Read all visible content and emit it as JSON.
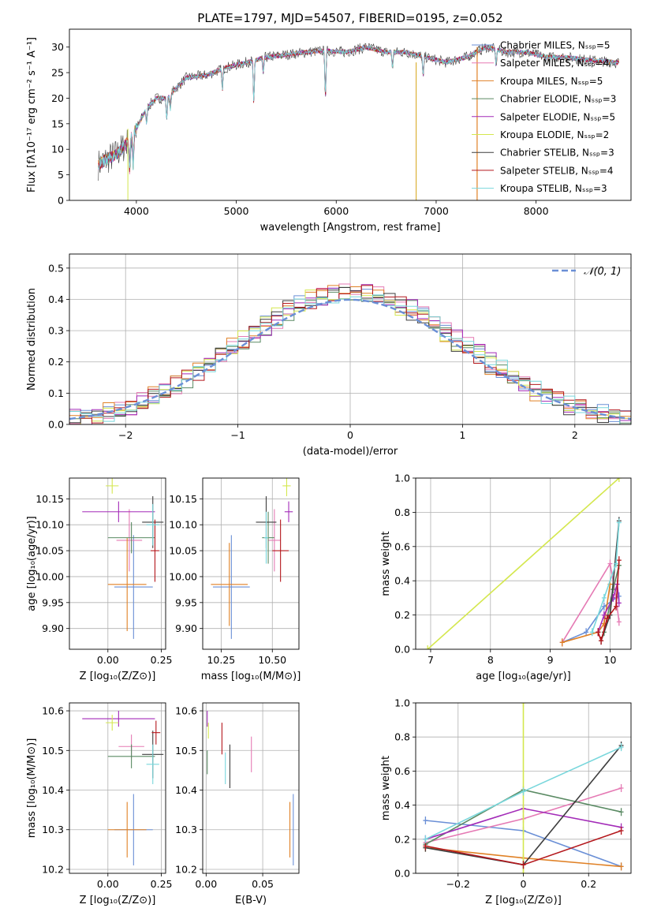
{
  "colors": [
    "#6a8fd6",
    "#e57ab4",
    "#e08126",
    "#5a8a63",
    "#a32bb8",
    "#d4e74e",
    "#3e3e3e",
    "#b4171c",
    "#79d7dc"
  ],
  "chart_data": [
    {
      "id": "spectrum",
      "type": "line",
      "title": "PLATE=1797, MJD=54507, FIBERID=0195, z=0.052",
      "xlabel": "wavelength [Angstrom, rest frame]",
      "ylabel": "Flux [fλ10⁻¹⁷ erg cm⁻² s⁻¹ A⁻¹]",
      "xlim": [
        3330,
        8950
      ],
      "ylim": [
        0,
        33.5
      ],
      "xticks": [
        4000,
        5000,
        6000,
        7000,
        8000
      ],
      "yticks": [
        0,
        5,
        10,
        15,
        20,
        25,
        30
      ],
      "grid": false,
      "legend_position": "upper-right",
      "legend": [
        {
          "label": "Chabrier MILES, Nₛₛₚ=5",
          "color": "#6a8fd6"
        },
        {
          "label": "Salpeter MILES, Nₛₛₚ=4",
          "color": "#e57ab4"
        },
        {
          "label": "Kroupa MILES, Nₛₛₚ=5",
          "color": "#e08126"
        },
        {
          "label": "Chabrier ELODIE, Nₛₛₚ=3",
          "color": "#5a8a63"
        },
        {
          "label": "Salpeter ELODIE, Nₛₛₚ=5",
          "color": "#a32bb8"
        },
        {
          "label": "Kroupa ELODIE, Nₛₛₚ=2",
          "color": "#d4e74e"
        },
        {
          "label": "Chabrier STELIB, Nₛₛₚ=3",
          "color": "#3e3e3e"
        },
        {
          "label": "Salpeter STELIB, Nₛₛₚ=4",
          "color": "#b4171c"
        },
        {
          "label": "Kroupa STELIB, Nₛₛₚ=3",
          "color": "#79d7dc"
        }
      ],
      "continuum": [
        [
          3620,
          7
        ],
        [
          3700,
          8
        ],
        [
          3800,
          9
        ],
        [
          3900,
          11
        ],
        [
          4000,
          14
        ],
        [
          4100,
          18
        ],
        [
          4200,
          20
        ],
        [
          4300,
          20
        ],
        [
          4400,
          22
        ],
        [
          4500,
          24
        ],
        [
          4700,
          24.5
        ],
        [
          4900,
          26
        ],
        [
          5100,
          27
        ],
        [
          5300,
          28
        ],
        [
          5500,
          28.5
        ],
        [
          5700,
          29
        ],
        [
          5900,
          29.3
        ],
        [
          6100,
          29
        ],
        [
          6300,
          30
        ],
        [
          6500,
          29
        ],
        [
          6700,
          29
        ],
        [
          6900,
          28
        ],
        [
          7100,
          27
        ],
        [
          7300,
          28
        ],
        [
          7500,
          30
        ],
        [
          7700,
          29
        ],
        [
          7900,
          29
        ],
        [
          8100,
          28
        ],
        [
          8300,
          28
        ],
        [
          8500,
          27.5
        ],
        [
          8800,
          27
        ]
      ]
    },
    {
      "id": "residuals",
      "type": "histogram",
      "xlabel": "(data-model)/error",
      "ylabel": "Normed distribution",
      "xlim": [
        -2.5,
        2.5
      ],
      "ylim": [
        0,
        0.545
      ],
      "xticks": [
        -2,
        -1,
        0,
        1,
        2
      ],
      "yticks": [
        0.0,
        0.1,
        0.2,
        0.3,
        0.4,
        0.5
      ],
      "grid": true,
      "legend": [
        {
          "label": "𝒩(0, 1)",
          "color": "#6a8fd6",
          "style": "dashed"
        }
      ],
      "legend_position": "upper-right",
      "bin_width": 0.1,
      "series_offsets": [
        0.0,
        0.03,
        -0.03,
        0.02,
        0.045,
        -0.02,
        -0.04,
        0.015,
        0.03
      ]
    },
    {
      "id": "age-vs-Z",
      "type": "errorbar",
      "xlabel": "Z [log₁₀(Z/Z⊙)]",
      "ylabel": "age  [log₁₀(age/yr)]",
      "xlim": [
        -0.18,
        0.27
      ],
      "ylim": [
        9.86,
        10.19
      ],
      "xticks": [
        0.0,
        0.25
      ],
      "yticks": [
        9.9,
        9.95,
        10.0,
        10.05,
        10.1,
        10.15
      ],
      "grid": true,
      "points": [
        {
          "x": 0.12,
          "y": 9.98,
          "xerr": 0.09,
          "yerr": 0.1,
          "series": 0
        },
        {
          "x": 0.1,
          "y": 10.07,
          "xerr": 0.06,
          "yerr": 0.06,
          "series": 1
        },
        {
          "x": 0.09,
          "y": 9.985,
          "xerr": 0.09,
          "yerr": 0.09,
          "series": 2
        },
        {
          "x": 0.11,
          "y": 10.075,
          "xerr": 0.11,
          "yerr": 0.03,
          "series": 3
        },
        {
          "x": 0.05,
          "y": 10.125,
          "xerr": 0.17,
          "yerr": 0.02,
          "series": 4
        },
        {
          "x": 0.02,
          "y": 10.175,
          "xerr": 0.03,
          "yerr": 0.015,
          "series": 5
        },
        {
          "x": 0.21,
          "y": 10.105,
          "xerr": 0.05,
          "yerr": 0.05,
          "series": 6
        },
        {
          "x": 0.22,
          "y": 10.05,
          "xerr": 0.02,
          "yerr": 0.06,
          "series": 7
        },
        {
          "x": 0.21,
          "y": 10.1,
          "xerr": 0.03,
          "yerr": 0.04,
          "series": 8
        }
      ]
    },
    {
      "id": "age-vs-mass",
      "type": "errorbar",
      "xlabel": "mass [log₁₀(M/M⊙)]",
      "ylabel": "",
      "xlim": [
        10.16,
        10.63
      ],
      "ylim": [
        9.86,
        10.19
      ],
      "xticks": [
        10.25,
        10.5
      ],
      "yticks": [
        9.9,
        9.95,
        10.0,
        10.05,
        10.1,
        10.15
      ],
      "grid": true,
      "points": [
        {
          "x": 10.3,
          "y": 9.98,
          "xerr": 0.09,
          "yerr": 0.1,
          "series": 0
        },
        {
          "x": 10.51,
          "y": 10.07,
          "xerr": 0.03,
          "yerr": 0.06,
          "series": 1
        },
        {
          "x": 10.29,
          "y": 9.985,
          "xerr": 0.09,
          "yerr": 0.08,
          "series": 2
        },
        {
          "x": 10.48,
          "y": 10.075,
          "xerr": 0.03,
          "yerr": 0.05,
          "series": 3
        },
        {
          "x": 10.58,
          "y": 10.125,
          "xerr": 0.02,
          "yerr": 0.02,
          "series": 4
        },
        {
          "x": 10.57,
          "y": 10.175,
          "xerr": 0.02,
          "yerr": 0.02,
          "series": 5
        },
        {
          "x": 10.47,
          "y": 10.105,
          "xerr": 0.05,
          "yerr": 0.05,
          "series": 6
        },
        {
          "x": 10.54,
          "y": 10.05,
          "xerr": 0.04,
          "yerr": 0.06,
          "series": 7
        },
        {
          "x": 10.47,
          "y": 10.075,
          "xerr": 0.01,
          "yerr": 0.05,
          "series": 8
        }
      ]
    },
    {
      "id": "weight-vs-age",
      "type": "line",
      "xlabel": "age  [log₁₀(age/yr)]",
      "ylabel": "mass weight",
      "xlim": [
        6.75,
        10.35
      ],
      "ylim": [
        0,
        1.0
      ],
      "xticks": [
        7,
        8,
        9,
        10
      ],
      "yticks": [
        0.0,
        0.2,
        0.4,
        0.6,
        0.8,
        1.0
      ],
      "grid": true,
      "series": [
        {
          "series": 0,
          "points": [
            [
              9.2,
              0.04
            ],
            [
              9.6,
              0.1
            ],
            [
              9.9,
              0.25
            ],
            [
              10.1,
              0.3
            ],
            [
              10.15,
              0.31
            ]
          ]
        },
        {
          "series": 1,
          "points": [
            [
              9.2,
              0.04
            ],
            [
              10.0,
              0.5
            ],
            [
              10.1,
              0.3
            ],
            [
              10.15,
              0.16
            ]
          ]
        },
        {
          "series": 2,
          "points": [
            [
              9.2,
              0.04
            ],
            [
              9.8,
              0.1
            ],
            [
              9.9,
              0.15
            ],
            [
              10.0,
              0.38
            ]
          ]
        },
        {
          "series": 3,
          "points": [
            [
              9.9,
              0.1
            ],
            [
              10.05,
              0.35
            ],
            [
              10.15,
              0.49
            ]
          ]
        },
        {
          "series": 4,
          "points": [
            [
              9.8,
              0.1
            ],
            [
              9.9,
              0.2
            ],
            [
              10.05,
              0.3
            ],
            [
              10.12,
              0.38
            ],
            [
              10.15,
              0.27
            ]
          ]
        },
        {
          "series": 5,
          "points": [
            [
              6.95,
              0.0
            ],
            [
              10.15,
              1.0
            ]
          ]
        },
        {
          "series": 6,
          "points": [
            [
              9.85,
              0.05
            ],
            [
              10.0,
              0.2
            ],
            [
              10.15,
              0.75
            ]
          ]
        },
        {
          "series": 7,
          "points": [
            [
              9.8,
              0.1
            ],
            [
              9.85,
              0.05
            ],
            [
              9.95,
              0.18
            ],
            [
              10.1,
              0.25
            ],
            [
              10.15,
              0.52
            ]
          ]
        },
        {
          "series": 8,
          "points": [
            [
              9.7,
              0.1
            ],
            [
              9.9,
              0.3
            ],
            [
              10.1,
              0.5
            ],
            [
              10.15,
              0.74
            ]
          ]
        }
      ]
    },
    {
      "id": "mass-vs-Z",
      "type": "errorbar",
      "xlabel": "Z [log₁₀(Z/Z⊙)]",
      "ylabel": "mass [log₁₀(M/M⊙)]",
      "xlim": [
        -0.18,
        0.27
      ],
      "ylim": [
        10.19,
        10.62
      ],
      "xticks": [
        0.0,
        0.25
      ],
      "yticks": [
        10.2,
        10.3,
        10.4,
        10.5,
        10.6
      ],
      "grid": true,
      "points": [
        {
          "x": 0.12,
          "y": 10.3,
          "xerr": 0.09,
          "yerr": 0.09,
          "series": 0
        },
        {
          "x": 0.11,
          "y": 10.51,
          "xerr": 0.06,
          "yerr": 0.03,
          "series": 1
        },
        {
          "x": 0.09,
          "y": 10.3,
          "xerr": 0.09,
          "yerr": 0.07,
          "series": 2
        },
        {
          "x": 0.11,
          "y": 10.485,
          "xerr": 0.11,
          "yerr": 0.03,
          "series": 3
        },
        {
          "x": 0.05,
          "y": 10.58,
          "xerr": 0.17,
          "yerr": 0.02,
          "series": 4
        },
        {
          "x": 0.02,
          "y": 10.57,
          "xerr": 0.03,
          "yerr": 0.02,
          "series": 5
        },
        {
          "x": 0.21,
          "y": 10.49,
          "xerr": 0.05,
          "yerr": 0.06,
          "series": 6
        },
        {
          "x": 0.225,
          "y": 10.545,
          "xerr": 0.02,
          "yerr": 0.03,
          "series": 7
        },
        {
          "x": 0.21,
          "y": 10.465,
          "xerr": 0.03,
          "yerr": 0.05,
          "series": 8
        }
      ]
    },
    {
      "id": "mass-vs-ebv",
      "type": "errorbar",
      "xlabel": "E(B-V)",
      "ylabel": "",
      "xlim": [
        -0.003,
        0.082
      ],
      "ylim": [
        10.19,
        10.62
      ],
      "xticks": [
        0.0,
        0.05
      ],
      "yticks": [
        10.2,
        10.3,
        10.4,
        10.5,
        10.6
      ],
      "grid": true,
      "points": [
        {
          "x": 0.077,
          "y": 10.3,
          "xerr": 0.0,
          "yerr": 0.09,
          "series": 0
        },
        {
          "x": 0.04,
          "y": 10.49,
          "xerr": 0.0,
          "yerr": 0.045,
          "series": 1
        },
        {
          "x": 0.074,
          "y": 10.3,
          "xerr": 0.0,
          "yerr": 0.07,
          "series": 2
        },
        {
          "x": 0.001,
          "y": 10.47,
          "xerr": 0.0,
          "yerr": 0.03,
          "series": 3
        },
        {
          "x": 0.001,
          "y": 10.58,
          "xerr": 0.0,
          "yerr": 0.02,
          "series": 4
        },
        {
          "x": 0.002,
          "y": 10.55,
          "xerr": 0.0,
          "yerr": 0.02,
          "series": 5
        },
        {
          "x": 0.021,
          "y": 10.46,
          "xerr": 0.0,
          "yerr": 0.055,
          "series": 6
        },
        {
          "x": 0.014,
          "y": 10.53,
          "xerr": 0.0,
          "yerr": 0.04,
          "series": 7
        },
        {
          "x": 0.017,
          "y": 10.455,
          "xerr": 0.0,
          "yerr": 0.04,
          "series": 8
        }
      ]
    },
    {
      "id": "weight-vs-Z",
      "type": "line",
      "xlabel": "Z [log₁₀(Z/Z⊙)]",
      "ylabel": "mass weight",
      "xlim": [
        -0.33,
        0.33
      ],
      "ylim": [
        0,
        1.0
      ],
      "xticks": [
        -0.2,
        0.0,
        0.2
      ],
      "yticks": [
        0.0,
        0.2,
        0.4,
        0.6,
        0.8,
        1.0
      ],
      "grid": true,
      "series": [
        {
          "series": 0,
          "points": [
            [
              -0.3,
              0.31
            ],
            [
              0.0,
              0.25
            ],
            [
              0.3,
              0.04
            ]
          ]
        },
        {
          "series": 1,
          "points": [
            [
              -0.3,
              0.18
            ],
            [
              0.0,
              0.32
            ],
            [
              0.3,
              0.5
            ]
          ]
        },
        {
          "series": 2,
          "points": [
            [
              -0.3,
              0.15
            ],
            [
              0.0,
              0.09
            ],
            [
              0.3,
              0.04
            ]
          ]
        },
        {
          "series": 3,
          "points": [
            [
              -0.3,
              0.17
            ],
            [
              0.0,
              0.49
            ],
            [
              0.3,
              0.36
            ]
          ]
        },
        {
          "series": 4,
          "points": [
            [
              -0.3,
              0.2
            ],
            [
              0.0,
              0.38
            ],
            [
              0.3,
              0.27
            ]
          ]
        },
        {
          "series": 5,
          "points": [
            [
              0.0,
              0.0
            ],
            [
              0.0,
              1.0
            ]
          ]
        },
        {
          "series": 6,
          "points": [
            [
              -0.3,
              0.15
            ],
            [
              0.0,
              0.05
            ],
            [
              0.3,
              0.75
            ]
          ]
        },
        {
          "series": 7,
          "points": [
            [
              -0.3,
              0.16
            ],
            [
              0.0,
              0.05
            ],
            [
              0.3,
              0.25
            ]
          ]
        },
        {
          "series": 8,
          "points": [
            [
              -0.3,
              0.2
            ],
            [
              0.0,
              0.48
            ],
            [
              0.3,
              0.74
            ]
          ]
        }
      ]
    }
  ]
}
